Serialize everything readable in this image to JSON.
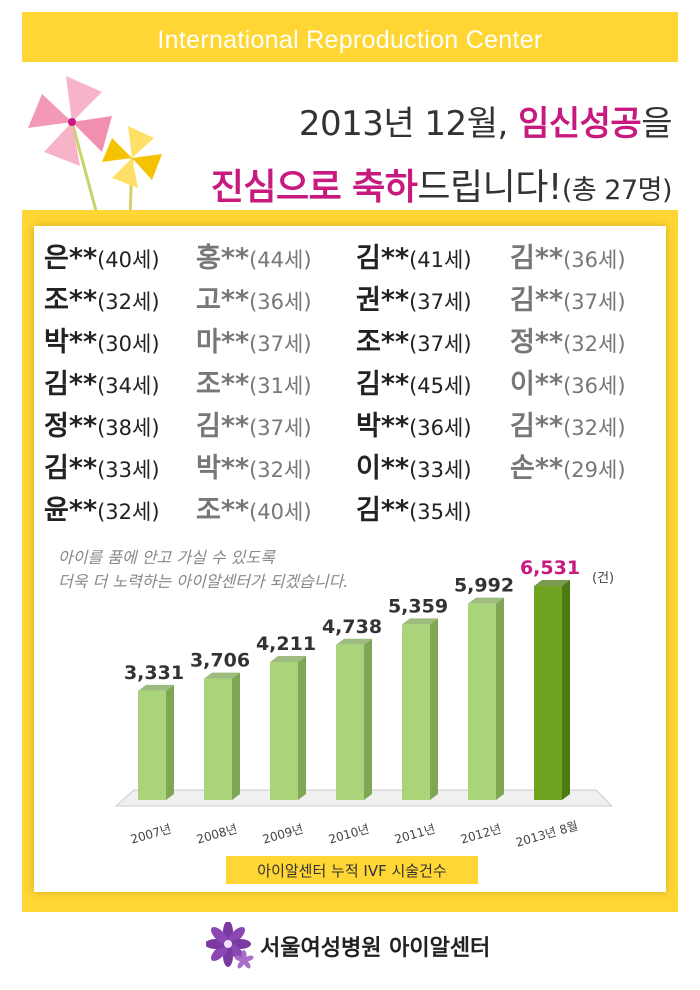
{
  "header": {
    "title": "International Reproduction Center"
  },
  "headline": {
    "line1_prefix": "2013년 12월, ",
    "line1_accent": "임신성공",
    "line1_suffix": "을",
    "line2_accent1": "진심으로",
    "line2_accent2": "축하",
    "line2_mid": "드립니다!",
    "line2_count": "(총 27명)"
  },
  "names": [
    [
      {
        "s": "은**",
        "a": "(40세)",
        "t": "dark"
      },
      {
        "s": "홍**",
        "a": "(44세)",
        "t": "gray"
      },
      {
        "s": "김**",
        "a": "(41세)",
        "t": "dark"
      },
      {
        "s": "김**",
        "a": "(36세)",
        "t": "gray"
      }
    ],
    [
      {
        "s": "조**",
        "a": "(32세)",
        "t": "dark"
      },
      {
        "s": "고**",
        "a": "(36세)",
        "t": "gray"
      },
      {
        "s": "권**",
        "a": "(37세)",
        "t": "dark"
      },
      {
        "s": "김**",
        "a": "(37세)",
        "t": "gray"
      }
    ],
    [
      {
        "s": "박**",
        "a": "(30세)",
        "t": "dark"
      },
      {
        "s": "마**",
        "a": "(37세)",
        "t": "gray"
      },
      {
        "s": "조**",
        "a": "(37세)",
        "t": "dark"
      },
      {
        "s": "정**",
        "a": "(32세)",
        "t": "gray"
      }
    ],
    [
      {
        "s": "김**",
        "a": "(34세)",
        "t": "dark"
      },
      {
        "s": "조**",
        "a": "(31세)",
        "t": "gray"
      },
      {
        "s": "김**",
        "a": "(45세)",
        "t": "dark"
      },
      {
        "s": "이**",
        "a": "(36세)",
        "t": "gray"
      }
    ],
    [
      {
        "s": "정**",
        "a": "(38세)",
        "t": "dark"
      },
      {
        "s": "김**",
        "a": "(37세)",
        "t": "gray"
      },
      {
        "s": "박**",
        "a": "(36세)",
        "t": "dark"
      },
      {
        "s": "김**",
        "a": "(32세)",
        "t": "gray"
      }
    ],
    [
      {
        "s": "김**",
        "a": "(33세)",
        "t": "dark"
      },
      {
        "s": "박**",
        "a": "(32세)",
        "t": "gray"
      },
      {
        "s": "이**",
        "a": "(33세)",
        "t": "dark"
      },
      {
        "s": "손**",
        "a": "(29세)",
        "t": "gray"
      }
    ],
    [
      {
        "s": "윤**",
        "a": "(32세)",
        "t": "dark"
      },
      {
        "s": "조**",
        "a": "(40세)",
        "t": "gray"
      },
      {
        "s": "김**",
        "a": "(35세)",
        "t": "dark"
      }
    ]
  ],
  "motto": {
    "line1": "아이를 품에 안고 가실 수 있도록",
    "line2": "더욱 더 노력하는 아이알센터가 되겠습니다."
  },
  "chart_data": {
    "type": "bar",
    "categories": [
      "2007년",
      "2008년",
      "2009년",
      "2010년",
      "2011년",
      "2012년",
      "2013년 8월"
    ],
    "values": [
      3331,
      3706,
      4211,
      4738,
      5359,
      5992,
      6531
    ],
    "value_labels": [
      "3,331",
      "3,706",
      "4,211",
      "4,738",
      "5,359",
      "5,992",
      "6,531"
    ],
    "unit_label": "(건)",
    "highlight_index": 6,
    "title": "아이알센터 누적 IVF 시술건수",
    "colors": {
      "bar": "#a9d47a",
      "bar_side": "#7ea654",
      "highlight": "#6fa321",
      "highlight_side": "#4d7a12",
      "highlight_label": "#c7197e"
    }
  },
  "footer": {
    "text": "서울여성병원 아이알센터"
  },
  "colors": {
    "yellow": "#ffd633",
    "accent": "#c7197e"
  }
}
